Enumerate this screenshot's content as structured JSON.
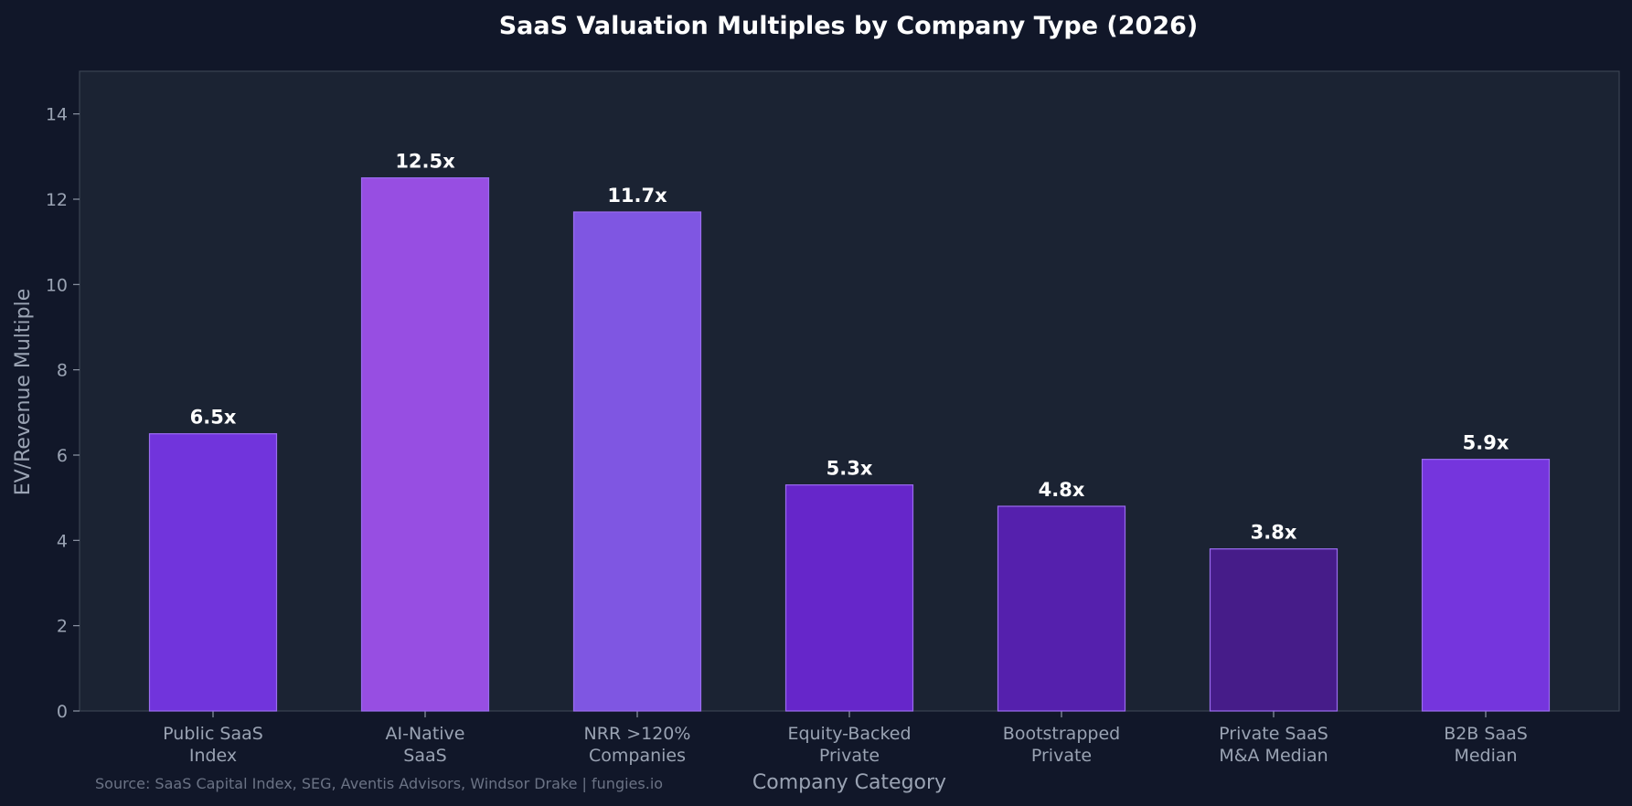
{
  "chart_data": {
    "type": "bar",
    "title": "SaaS Valuation Multiples by Company Type (2026)",
    "xlabel": "Company Category",
    "ylabel": "EV/Revenue Multiple",
    "categories": [
      [
        "Public SaaS",
        "Index"
      ],
      [
        "AI-Native",
        "SaaS"
      ],
      [
        "NRR >120%",
        "Companies"
      ],
      [
        "Equity-Backed",
        "Private"
      ],
      [
        "Bootstrapped",
        "Private"
      ],
      [
        "Private SaaS",
        "M&A Median"
      ],
      [
        "B2B SaaS",
        "Median"
      ]
    ],
    "values": [
      6.5,
      12.5,
      11.7,
      5.3,
      4.8,
      3.8,
      5.9
    ],
    "value_labels": [
      "6.5x",
      "12.5x",
      "11.7x",
      "5.3x",
      "4.8x",
      "3.8x",
      "5.9x"
    ],
    "bar_colors": [
      "#7134dc",
      "#974ee2",
      "#7f56e2",
      "#6626ca",
      "#5520ad",
      "#461c89",
      "#7535dd"
    ],
    "bar_edge_color": "#9b6cf0",
    "ylim": [
      0,
      15
    ],
    "yticks": [
      0,
      2,
      4,
      6,
      8,
      10,
      12,
      14
    ],
    "grid": false,
    "legend": "none"
  },
  "footer": {
    "source": "Source: SaaS Capital Index, SEG, Aventis Advisors, Windsor Drake | fungies.io"
  },
  "colors": {
    "figure_background": "#111729",
    "plot_background": "#1b2333",
    "axis_frame": "#3a4352",
    "tick_color": "#8f97a6"
  }
}
